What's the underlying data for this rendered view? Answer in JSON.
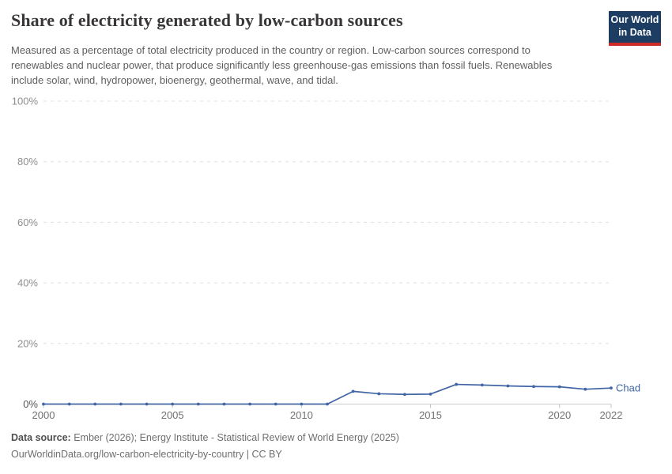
{
  "header": {
    "title": "Share of electricity generated by low-carbon sources",
    "subtitle": "Measured as a percentage of total electricity produced in the country or region. Low-carbon sources correspond to renewables and nuclear power, that produce significantly less greenhouse-gas emissions than fossil fuels. Renewables include solar, wind, hydropower, bioenergy, geothermal, wave, and tidal.",
    "logo": {
      "line1": "Our World",
      "line2": "in Data"
    }
  },
  "chart_data": {
    "type": "line",
    "title": "Share of electricity generated by low-carbon sources",
    "x": [
      2000,
      2001,
      2002,
      2003,
      2004,
      2005,
      2006,
      2007,
      2008,
      2009,
      2010,
      2011,
      2012,
      2013,
      2014,
      2015,
      2016,
      2017,
      2018,
      2019,
      2020,
      2021,
      2022
    ],
    "series": [
      {
        "name": "Chad",
        "color": "#4165a5",
        "values": [
          0,
          0,
          0,
          0,
          0,
          0,
          0,
          0,
          0,
          0,
          0,
          0,
          4.2,
          3.4,
          3.2,
          3.3,
          6.5,
          6.3,
          6.0,
          5.8,
          5.7,
          4.9,
          5.3
        ]
      }
    ],
    "unit": "%",
    "ylim": [
      0,
      100
    ],
    "yticks": [
      {
        "value": 0,
        "label": "0%"
      },
      {
        "value": 20,
        "label": "20%"
      },
      {
        "value": 40,
        "label": "40%"
      },
      {
        "value": 60,
        "label": "60%"
      },
      {
        "value": 80,
        "label": "80%"
      },
      {
        "value": 100,
        "label": "100%"
      }
    ],
    "xticks": [
      2000,
      2005,
      2010,
      2015,
      2020,
      2022
    ],
    "grid": "horizontal-dashed",
    "legend_position": "end-of-line-label"
  },
  "colors": {
    "accent_line": "#4165a5",
    "gridline": "#e0e0e0",
    "zero_axis": "#cccccc",
    "y_tick_label": "#8f8f8f",
    "zero_tick_label": "#565656",
    "x_tick_label": "#707070",
    "x_tick_mark": "#c4c4c4",
    "logo_bg": "#1d3d63",
    "logo_bar": "#cf2b26",
    "title_text": "#383636",
    "subtitle_text": "#5f5f5f"
  },
  "footer": {
    "datasource_label": "Data source:",
    "datasource_text": " Ember (2026); Energy Institute - Statistical Review of World Energy (2025)",
    "url_text": "OurWorldinData.org/low-carbon-electricity-by-country",
    "license_text": " | CC BY"
  }
}
